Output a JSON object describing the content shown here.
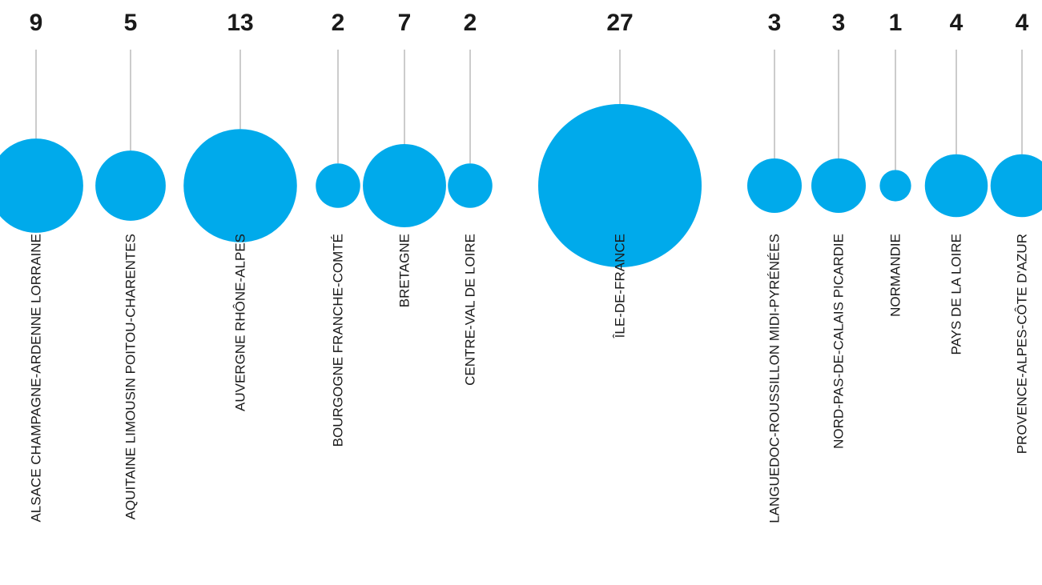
{
  "chart_data": {
    "type": "bubble",
    "title": "",
    "xlabel": "",
    "ylabel": "",
    "grid": false,
    "legend": "none",
    "color": "#00aaeb",
    "categories": [
      "ALSACE CHAMPAGNE-ARDENNE LORRAINE",
      "AQUITAINE LIMOUSIN POITOU-CHARENTES",
      "AUVERGNE RHÔNE-ALPES",
      "BOURGOGNE FRANCHE-COMTÉ",
      "BRETAGNE",
      "CENTRE-VAL DE LOIRE",
      "ÎLE-DE-FRANCE",
      "LANGUEDOC-ROUSSILLON MIDI-PYRÉNÉES",
      "NORD-PAS-DE-CALAIS PICARDIE",
      "NORMANDIE",
      "PAYS DE LA LOIRE",
      "PROVENCE-ALPES-CÔTE D'AZUR"
    ],
    "values": [
      9,
      5,
      13,
      2,
      7,
      2,
      27,
      3,
      3,
      1,
      4,
      4
    ]
  }
}
